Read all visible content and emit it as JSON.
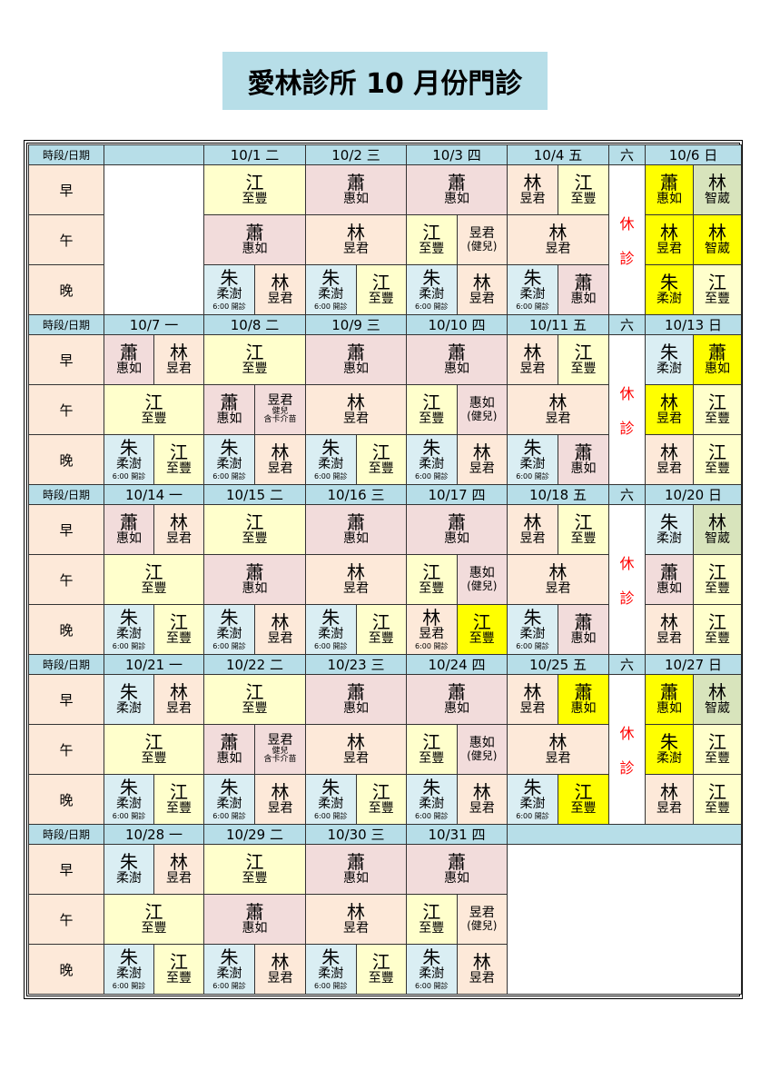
{
  "title": "愛林診所 10 月份門診",
  "header_label": "時段/日期",
  "slots": [
    "早",
    "午",
    "晚"
  ],
  "closed_text": [
    "休",
    "診"
  ],
  "evening_note": "6:00 開診",
  "colors": {
    "header": "#B7DEE8",
    "highlight": "#FFFF00",
    "closed_text": "#FF0000"
  },
  "doctors": {
    "J": {
      "surname": "江",
      "given": "至豐",
      "color": "#FFFFCC"
    },
    "X": {
      "surname": "蕭",
      "given": "惠如",
      "color": "#F2DCDB"
    },
    "L": {
      "surname": "林",
      "given": "昱君",
      "color": "#FDE9D9"
    },
    "Z": {
      "surname": "朱",
      "given": "柔澍",
      "color": "#DAEEF3"
    },
    "W": {
      "surname": "林",
      "given": "智葳",
      "color": "#D8E4BC"
    },
    "LC": {
      "given": "昱君",
      "sub": "(健兒)",
      "color": "#FDE9D9"
    },
    "XC": {
      "given": "惠如",
      "sub": "(健兒)",
      "color": "#F2DCDB"
    },
    "LB": {
      "given": "昱君",
      "sub": "健兒",
      "sub2": "含卡介苗",
      "color": "#F2DCDB"
    }
  },
  "legend_codes": "J/X/L/Z/W = doctor; * = highlighted; n = shows evening note",
  "weeks": [
    {
      "days": [
        "",
        "10/1 二",
        "10/2 三",
        "10/3 四",
        "10/4 五",
        "六",
        "10/6 日"
      ],
      "empty_from": null,
      "empty_mon": true,
      "rows": [
        [
          null,
          [
            "J"
          ],
          [
            "X"
          ],
          [
            "X"
          ],
          [
            "L",
            "J"
          ],
          "closed",
          [
            "X*",
            "W"
          ]
        ],
        [
          null,
          [
            "X"
          ],
          [
            "L"
          ],
          [
            "J",
            "LC"
          ],
          [
            "L"
          ],
          "closed",
          [
            "L*",
            "W*"
          ]
        ],
        [
          null,
          [
            "Zn",
            "L"
          ],
          [
            "Zn",
            "J"
          ],
          [
            "Zn",
            "L"
          ],
          [
            "Zn",
            "X"
          ],
          "closed",
          [
            "Z*",
            "J"
          ]
        ]
      ]
    },
    {
      "days": [
        "10/7 一",
        "10/8 二",
        "10/9 三",
        "10/10 四",
        "10/11 五",
        "六",
        "10/13 日"
      ],
      "rows": [
        [
          [
            "X",
            "L"
          ],
          [
            "J"
          ],
          [
            "X"
          ],
          [
            "X"
          ],
          [
            "L",
            "J"
          ],
          "closed",
          [
            "Z",
            "X*"
          ]
        ],
        [
          [
            "J"
          ],
          [
            "X",
            "LB"
          ],
          [
            "L"
          ],
          [
            "J",
            "XC"
          ],
          [
            "L"
          ],
          "closed",
          [
            "L*",
            "J"
          ]
        ],
        [
          [
            "Zn",
            "J"
          ],
          [
            "Zn",
            "L"
          ],
          [
            "Zn",
            "J"
          ],
          [
            "Zn",
            "L"
          ],
          [
            "Zn",
            "X"
          ],
          "closed",
          [
            "L",
            "J"
          ]
        ]
      ]
    },
    {
      "days": [
        "10/14 一",
        "10/15 二",
        "10/16 三",
        "10/17 四",
        "10/18 五",
        "六",
        "10/20 日"
      ],
      "rows": [
        [
          [
            "X",
            "L"
          ],
          [
            "J"
          ],
          [
            "X"
          ],
          [
            "X"
          ],
          [
            "L",
            "J"
          ],
          "closed",
          [
            "Z",
            "W"
          ]
        ],
        [
          [
            "J"
          ],
          [
            "X"
          ],
          [
            "L"
          ],
          [
            "J",
            "XC"
          ],
          [
            "L"
          ],
          "closed",
          [
            "X",
            "J"
          ]
        ],
        [
          [
            "Zn",
            "J"
          ],
          [
            "Zn",
            "L"
          ],
          [
            "Zn",
            "J"
          ],
          [
            "Ln",
            "J*"
          ],
          [
            "Zn",
            "X"
          ],
          "closed",
          [
            "L",
            "J"
          ]
        ]
      ]
    },
    {
      "days": [
        "10/21 一",
        "10/22 二",
        "10/23 三",
        "10/24 四",
        "10/25 五",
        "六",
        "10/27 日"
      ],
      "rows": [
        [
          [
            "Z",
            "L"
          ],
          [
            "J"
          ],
          [
            "X"
          ],
          [
            "X"
          ],
          [
            "L",
            "X*"
          ],
          "closed",
          [
            "X*",
            "W"
          ]
        ],
        [
          [
            "J"
          ],
          [
            "X",
            "LB"
          ],
          [
            "L"
          ],
          [
            "J",
            "XC"
          ],
          [
            "L"
          ],
          "closed",
          [
            "Z*",
            "J"
          ]
        ],
        [
          [
            "Zn",
            "J"
          ],
          [
            "Zn",
            "L"
          ],
          [
            "Zn",
            "J"
          ],
          [
            "Zn",
            "L"
          ],
          [
            "Zn",
            "J*"
          ],
          "closed",
          [
            "L",
            "J"
          ]
        ]
      ]
    },
    {
      "days": [
        "10/28 一",
        "10/29 二",
        "10/30 三",
        "10/31 四"
      ],
      "empty_tail": true,
      "rows": [
        [
          [
            "Z",
            "L"
          ],
          [
            "J"
          ],
          [
            "X"
          ],
          [
            "X"
          ]
        ],
        [
          [
            "J"
          ],
          [
            "X"
          ],
          [
            "L"
          ],
          [
            "J",
            "LC"
          ]
        ],
        [
          [
            "Zn",
            "J"
          ],
          [
            "Zn",
            "L"
          ],
          [
            "Zn",
            "J"
          ],
          [
            "Zn",
            "L"
          ]
        ]
      ]
    }
  ]
}
